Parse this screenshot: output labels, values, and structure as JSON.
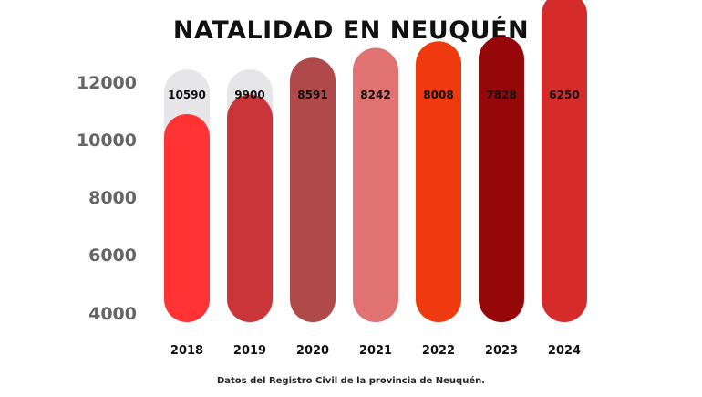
{
  "chart_data": {
    "type": "bar",
    "title": "NATALIDAD EN NEUQUÉN",
    "source": "Datos del Registro Civil de la provincia de Neuquén.",
    "categories": [
      "2018",
      "2019",
      "2020",
      "2021",
      "2022",
      "2023",
      "2024"
    ],
    "values": [
      10590,
      9900,
      8591,
      8242,
      8008,
      7828,
      6250
    ],
    "data_labels": [
      "10590",
      "9900",
      "8591",
      "8242",
      "8008",
      "7828",
      "6250"
    ],
    "bar_colors": [
      "#ff3333",
      "#c93538",
      "#b04a4a",
      "#e07272",
      "#ee3a0e",
      "#950708",
      "#d62b2b"
    ],
    "track_color": "#e6e6e8",
    "y_ticks": [
      "12000",
      "10000",
      "8000",
      "6000",
      "4000"
    ],
    "xlabel": "",
    "ylabel": "",
    "grid": false,
    "legend": "none"
  }
}
